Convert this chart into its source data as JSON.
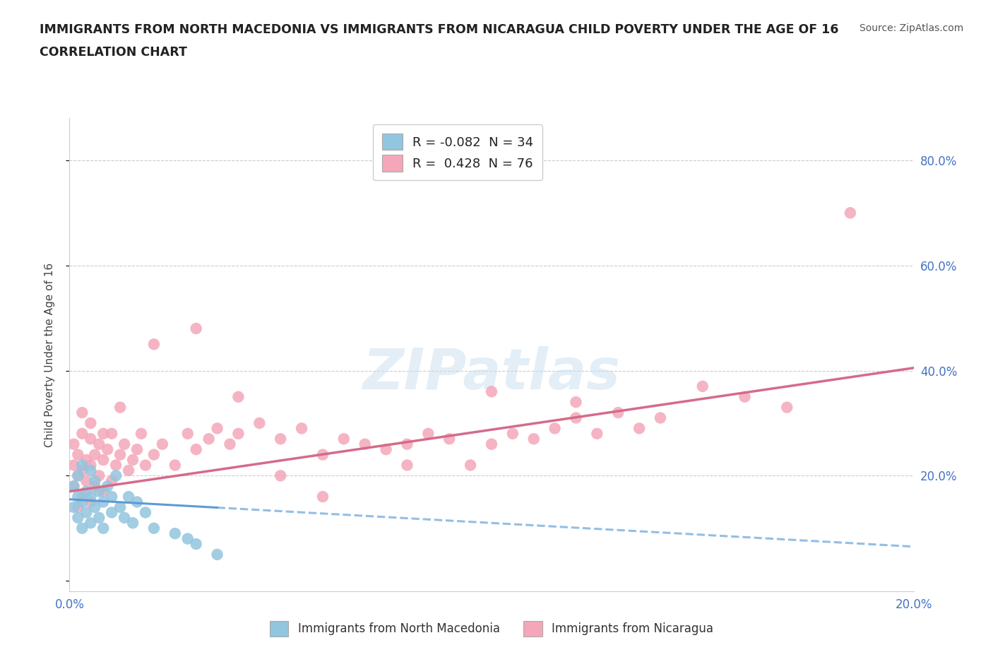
{
  "title_line1": "IMMIGRANTS FROM NORTH MACEDONIA VS IMMIGRANTS FROM NICARAGUA CHILD POVERTY UNDER THE AGE OF 16",
  "title_line2": "CORRELATION CHART",
  "source_text": "Source: ZipAtlas.com",
  "ylabel": "Child Poverty Under the Age of 16",
  "xlim": [
    0.0,
    0.2
  ],
  "ylim": [
    -0.02,
    0.88
  ],
  "xticks": [
    0.0,
    0.05,
    0.1,
    0.15,
    0.2
  ],
  "yticks": [
    0.0,
    0.2,
    0.4,
    0.6,
    0.8
  ],
  "ytick_labels_right": [
    "",
    "20.0%",
    "40.0%",
    "60.0%",
    "80.0%"
  ],
  "xtick_labels": [
    "0.0%",
    "",
    "",
    "",
    "20.0%"
  ],
  "watermark": "ZIPatlas",
  "legend_box_blue_label": "R = -0.082  N = 34",
  "legend_box_pink_label": "R =  0.428  N = 76",
  "legend_bottom_blue": "Immigrants from North Macedonia",
  "legend_bottom_pink": "Immigrants from Nicaragua",
  "color_blue": "#92c5de",
  "color_pink": "#f4a7b9",
  "color_trend_blue": "#5b9bd5",
  "color_trend_pink": "#d46b8a",
  "color_axis_text": "#4472c4",
  "nm_x": [
    0.001,
    0.001,
    0.002,
    0.002,
    0.002,
    0.003,
    0.003,
    0.003,
    0.004,
    0.004,
    0.005,
    0.005,
    0.005,
    0.006,
    0.006,
    0.007,
    0.007,
    0.008,
    0.008,
    0.009,
    0.01,
    0.01,
    0.011,
    0.012,
    0.013,
    0.014,
    0.015,
    0.016,
    0.018,
    0.02,
    0.025,
    0.028,
    0.03,
    0.035
  ],
  "nm_y": [
    0.14,
    0.18,
    0.12,
    0.16,
    0.2,
    0.1,
    0.15,
    0.22,
    0.13,
    0.17,
    0.11,
    0.16,
    0.21,
    0.14,
    0.19,
    0.12,
    0.17,
    0.1,
    0.15,
    0.18,
    0.16,
    0.13,
    0.2,
    0.14,
    0.12,
    0.16,
    0.11,
    0.15,
    0.13,
    0.1,
    0.09,
    0.08,
    0.07,
    0.05
  ],
  "nic_x": [
    0.001,
    0.001,
    0.001,
    0.002,
    0.002,
    0.002,
    0.003,
    0.003,
    0.003,
    0.004,
    0.004,
    0.005,
    0.005,
    0.005,
    0.006,
    0.006,
    0.007,
    0.007,
    0.008,
    0.008,
    0.009,
    0.01,
    0.01,
    0.011,
    0.012,
    0.013,
    0.014,
    0.015,
    0.016,
    0.017,
    0.018,
    0.02,
    0.022,
    0.025,
    0.028,
    0.03,
    0.033,
    0.035,
    0.038,
    0.04,
    0.045,
    0.05,
    0.055,
    0.06,
    0.065,
    0.07,
    0.075,
    0.08,
    0.085,
    0.09,
    0.095,
    0.1,
    0.105,
    0.11,
    0.115,
    0.12,
    0.125,
    0.13,
    0.135,
    0.14,
    0.003,
    0.005,
    0.008,
    0.012,
    0.02,
    0.03,
    0.04,
    0.05,
    0.06,
    0.08,
    0.1,
    0.12,
    0.15,
    0.16,
    0.17,
    0.185
  ],
  "nic_y": [
    0.18,
    0.22,
    0.26,
    0.14,
    0.2,
    0.24,
    0.16,
    0.21,
    0.28,
    0.19,
    0.23,
    0.15,
    0.22,
    0.27,
    0.18,
    0.24,
    0.2,
    0.26,
    0.17,
    0.23,
    0.25,
    0.19,
    0.28,
    0.22,
    0.24,
    0.26,
    0.21,
    0.23,
    0.25,
    0.28,
    0.22,
    0.24,
    0.26,
    0.22,
    0.28,
    0.25,
    0.27,
    0.29,
    0.26,
    0.28,
    0.3,
    0.27,
    0.29,
    0.24,
    0.27,
    0.26,
    0.25,
    0.26,
    0.28,
    0.27,
    0.22,
    0.26,
    0.28,
    0.27,
    0.29,
    0.31,
    0.28,
    0.32,
    0.29,
    0.31,
    0.32,
    0.3,
    0.28,
    0.33,
    0.45,
    0.48,
    0.35,
    0.2,
    0.16,
    0.22,
    0.36,
    0.34,
    0.37,
    0.35,
    0.33,
    0.7
  ],
  "trend_blue_x0": 0.0,
  "trend_blue_y0": 0.155,
  "trend_blue_x1": 0.2,
  "trend_blue_y1": 0.065,
  "trend_blue_solid_end": 0.035,
  "trend_pink_x0": 0.0,
  "trend_pink_y0": 0.17,
  "trend_pink_x1": 0.2,
  "trend_pink_y1": 0.405
}
